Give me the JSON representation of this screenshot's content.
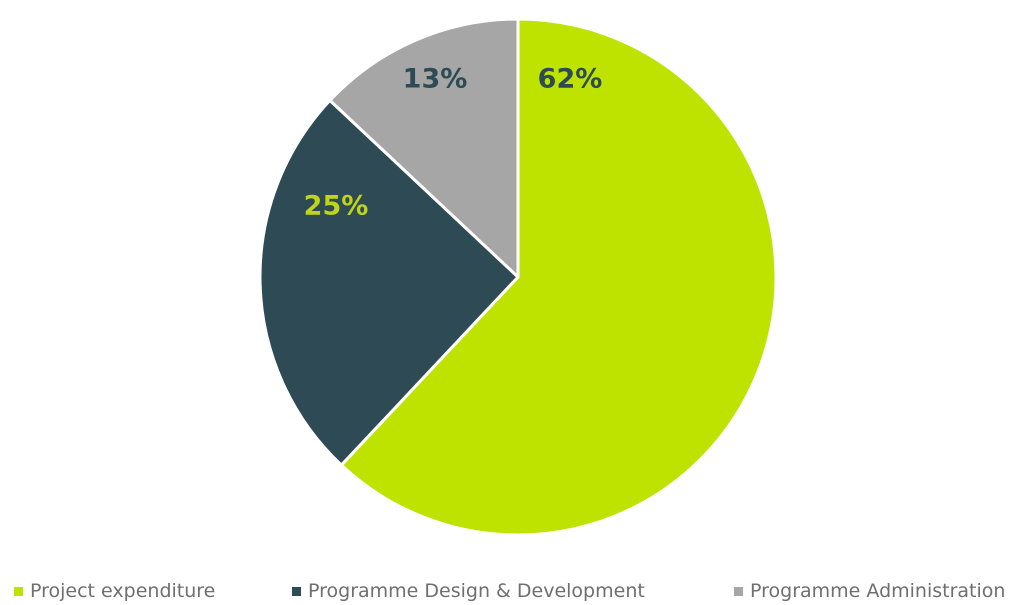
{
  "chart_data": {
    "type": "pie",
    "title": "",
    "slices": [
      {
        "name": "Project expenditure",
        "value": 62,
        "label": "62%",
        "color": "#bfe300",
        "label_color": "#2e4b55"
      },
      {
        "name": "Programme Design & Development",
        "value": 25,
        "label": "25%",
        "color": "#2e4b55",
        "label_color": "#bfd41c"
      },
      {
        "name": "Programme Administration",
        "value": 13,
        "label": "13%",
        "color": "#a6a6a6",
        "label_color": "#2e4b55"
      }
    ],
    "start_angle": "12 o'clock",
    "direction": "clockwise",
    "legend_position": "bottom"
  }
}
